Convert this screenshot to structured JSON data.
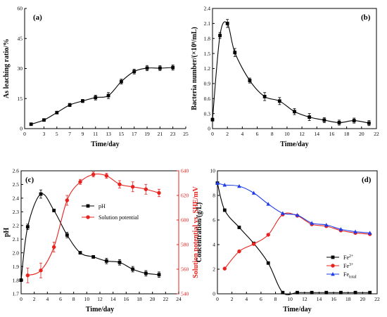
{
  "chart_data": [
    {
      "id": "a",
      "type": "line",
      "panel_label": "(a)",
      "xlabel": "Time/day",
      "ylabel": "As leaching ratio/%",
      "xlim": [
        0,
        25
      ],
      "ylim": [
        0,
        60
      ],
      "xticks": [
        0,
        3,
        5,
        7,
        9,
        11,
        13,
        15,
        17,
        19,
        21,
        23,
        25
      ],
      "xtick_labels": [
        "0",
        "3",
        "5",
        "7",
        "9",
        "11",
        "13",
        "15",
        "17",
        "19",
        "21",
        "23",
        "25"
      ],
      "yticks": [
        0,
        15,
        30,
        45,
        60
      ],
      "ytick_labels": [
        "0",
        "15",
        "30",
        "45",
        "60"
      ],
      "series": [
        {
          "color": "#000000",
          "marker": "square",
          "x": [
            1,
            3,
            5,
            7,
            9,
            11,
            13,
            15,
            17,
            19,
            21,
            23
          ],
          "y": [
            2.2,
            4.3,
            8.0,
            11.8,
            13.8,
            15.5,
            16.5,
            23.5,
            28.5,
            30.2,
            30.2,
            30.5
          ],
          "err": [
            0.5,
            0.6,
            0.6,
            0.8,
            0.8,
            1.2,
            1.5,
            1.2,
            1.2,
            1.3,
            1.2,
            1.3
          ]
        }
      ]
    },
    {
      "id": "b",
      "type": "line",
      "panel_label": "(b)",
      "xlabel": "Time/day",
      "ylabel": "Bacteria number/(×10⁸/mL)",
      "xlim": [
        0,
        22
      ],
      "ylim": [
        0,
        2.4
      ],
      "xticks": [
        0,
        2,
        4,
        6,
        8,
        10,
        12,
        14,
        16,
        18,
        20,
        22
      ],
      "xtick_labels": [
        "0",
        "2",
        "4",
        "6",
        "8",
        "10",
        "12",
        "14",
        "16",
        "18",
        "20",
        "22"
      ],
      "yticks": [
        0,
        0.3,
        0.6,
        0.9,
        1.2,
        1.5,
        1.8,
        2.1,
        2.4
      ],
      "ytick_labels": [
        "0",
        "0.3",
        "0.6",
        "0.9",
        "1.2",
        "1.5",
        "1.8",
        "2.1",
        "2.4"
      ],
      "series": [
        {
          "color": "#000000",
          "marker": "square",
          "x": [
            0,
            1,
            2,
            3,
            5,
            7,
            9,
            11,
            13,
            15,
            17,
            19,
            21
          ],
          "y": [
            0.18,
            1.86,
            2.1,
            1.52,
            0.96,
            0.64,
            0.55,
            0.34,
            0.23,
            0.17,
            0.12,
            0.16,
            0.11
          ],
          "err": [
            0.03,
            0.06,
            0.08,
            0.08,
            0.05,
            0.08,
            0.07,
            0.06,
            0.07,
            0.05,
            0.05,
            0.05,
            0.05
          ]
        }
      ]
    },
    {
      "id": "c",
      "type": "line",
      "panel_label": "(c)",
      "xlabel": "Time/day",
      "ylabel": "pH",
      "ylabel_right": "Solution potential vs. SHE/mV",
      "xlim": [
        0,
        24
      ],
      "ylim": [
        1.7,
        2.6
      ],
      "ylim_right": [
        540,
        640
      ],
      "xticks": [
        0,
        2,
        4,
        6,
        8,
        10,
        12,
        14,
        16,
        18,
        20,
        22,
        24
      ],
      "xtick_labels": [
        "0",
        "2",
        "4",
        "6",
        "8",
        "10",
        "12",
        "14",
        "16",
        "18",
        "20",
        "22",
        "24"
      ],
      "yticks": [
        1.7,
        1.8,
        1.9,
        2.0,
        2.1,
        2.2,
        2.3,
        2.4,
        2.5,
        2.6
      ],
      "ytick_labels": [
        "1.7",
        "1.8",
        "1.9",
        "2.0",
        "2.1",
        "2.2",
        "2.3",
        "2.4",
        "2.5",
        "2.6"
      ],
      "yticks_right": [
        540,
        560,
        580,
        600,
        620,
        640
      ],
      "ytick_labels_right": [
        "540",
        "560",
        "580",
        "600",
        "620",
        "640"
      ],
      "series": [
        {
          "name": "pH",
          "color": "#000000",
          "marker": "square",
          "axis": "left",
          "x": [
            0,
            1,
            3,
            5,
            7,
            9,
            11,
            13,
            15,
            17,
            19,
            21
          ],
          "y": [
            1.8,
            2.19,
            2.43,
            2.31,
            2.13,
            2.0,
            1.97,
            1.94,
            1.93,
            1.88,
            1.85,
            1.84
          ],
          "err": [
            0.01,
            0.02,
            0.03,
            0.01,
            0.02,
            0.01,
            0.01,
            0.02,
            0.02,
            0.02,
            0.02,
            0.02
          ]
        },
        {
          "name": "Solution potential",
          "color": "#e8231f",
          "marker": "circle",
          "axis": "right",
          "x": [
            1,
            3,
            5,
            7,
            9,
            11,
            13,
            15,
            17,
            19,
            21
          ],
          "y": [
            555,
            559,
            578,
            616,
            631,
            637,
            636,
            629,
            627,
            625,
            622
          ],
          "err": [
            6,
            6,
            4,
            4,
            2,
            2,
            2,
            3,
            4,
            4,
            3
          ]
        }
      ]
    },
    {
      "id": "d",
      "type": "line",
      "panel_label": "(d)",
      "xlabel": "Time/day",
      "ylabel": "Concentration/(g/L)",
      "xlim": [
        0,
        22
      ],
      "ylim": [
        0,
        10
      ],
      "xticks": [
        0,
        2,
        4,
        6,
        8,
        10,
        12,
        14,
        16,
        18,
        20,
        22
      ],
      "xtick_labels": [
        "0",
        "2",
        "4",
        "6",
        "8",
        "10",
        "12",
        "14",
        "16",
        "18",
        "20",
        "22"
      ],
      "yticks": [
        0,
        2,
        4,
        6,
        8,
        10
      ],
      "ytick_labels": [
        "0",
        "2",
        "4",
        "6",
        "8",
        "10"
      ],
      "series": [
        {
          "name": "Fe",
          "sup": "2+",
          "color": "#000000",
          "marker": "square",
          "x": [
            0,
            1,
            3,
            5,
            7,
            9,
            11,
            13,
            15,
            17,
            19,
            21
          ],
          "y": [
            9.0,
            6.8,
            5.4,
            4.1,
            2.5,
            0.1,
            0.1,
            0.1,
            0.1,
            0.1,
            0.1,
            0.1
          ]
        },
        {
          "name": "Fe",
          "sup": "3+",
          "color": "#e8231f",
          "marker": "circle",
          "x": [
            1,
            3,
            5,
            7,
            9,
            11,
            13,
            15,
            17,
            19,
            21
          ],
          "y": [
            2.05,
            3.45,
            4.05,
            4.8,
            6.45,
            6.35,
            5.65,
            5.5,
            5.15,
            4.95,
            4.85
          ]
        },
        {
          "name": "Fe",
          "sub": "total",
          "color": "#1f3de8",
          "marker": "triangle",
          "x": [
            0,
            1,
            3,
            5,
            7,
            9,
            11,
            13,
            15,
            17,
            19,
            21
          ],
          "y": [
            9.0,
            8.85,
            8.75,
            8.2,
            7.3,
            6.55,
            6.4,
            5.75,
            5.6,
            5.25,
            5.05,
            4.95
          ]
        }
      ]
    }
  ]
}
